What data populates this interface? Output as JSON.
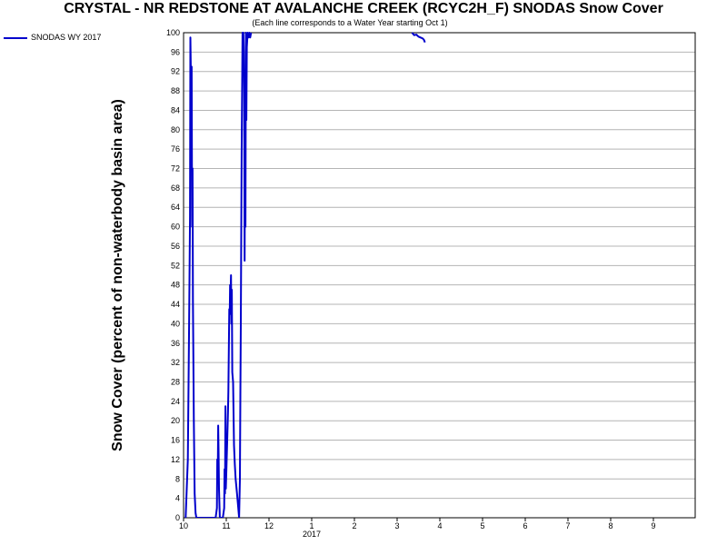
{
  "chart_data": {
    "type": "line",
    "title": "CRYSTAL - NR REDSTONE  AT AVALANCHE CREEK (RCYC2H_F) SNODAS Snow Cover",
    "subtitle": "(Each line corresponds to a Water Year starting Oct 1)",
    "ylabel": "Snow Cover (percent of non-waterbody basin area)",
    "xlabel": "",
    "ylim": [
      0,
      100
    ],
    "xlim": [
      0,
      12
    ],
    "y_ticks": [
      0,
      4,
      8,
      12,
      16,
      20,
      24,
      28,
      32,
      36,
      40,
      44,
      48,
      52,
      56,
      60,
      64,
      68,
      72,
      76,
      80,
      84,
      88,
      92,
      96,
      100
    ],
    "x_ticks": [
      {
        "x": 0,
        "label": "10"
      },
      {
        "x": 1,
        "label": "11"
      },
      {
        "x": 2,
        "label": "12"
      },
      {
        "x": 3,
        "label": "1"
      },
      {
        "x": 4,
        "label": "2"
      },
      {
        "x": 5,
        "label": "3"
      },
      {
        "x": 6,
        "label": "4"
      },
      {
        "x": 7,
        "label": "5"
      },
      {
        "x": 8,
        "label": "6"
      },
      {
        "x": 9,
        "label": "7"
      },
      {
        "x": 10,
        "label": "8"
      },
      {
        "x": 11,
        "label": "9"
      }
    ],
    "year_label": {
      "x": 3,
      "label": "2017"
    },
    "grid": true,
    "legend_position": "top-left",
    "series": [
      {
        "name": "SNODAS WY 2017",
        "color": "#0000cc",
        "segments": [
          [
            [
              0.05,
              0
            ],
            [
              0.1,
              12
            ],
            [
              0.13,
              40
            ],
            [
              0.15,
              62
            ],
            [
              0.16,
              99
            ],
            [
              0.18,
              85
            ],
            [
              0.19,
              93
            ],
            [
              0.2,
              60
            ],
            [
              0.21,
              72
            ],
            [
              0.22,
              45
            ],
            [
              0.24,
              20
            ],
            [
              0.26,
              5
            ],
            [
              0.28,
              1
            ],
            [
              0.3,
              0
            ],
            [
              0.4,
              0
            ],
            [
              0.6,
              0
            ],
            [
              0.75,
              0
            ],
            [
              0.78,
              2
            ],
            [
              0.79,
              12
            ],
            [
              0.8,
              8
            ],
            [
              0.81,
              19
            ],
            [
              0.82,
              14
            ],
            [
              0.83,
              6
            ],
            [
              0.85,
              0
            ],
            [
              0.92,
              0
            ],
            [
              0.95,
              2
            ],
            [
              0.96,
              10
            ],
            [
              0.97,
              5
            ],
            [
              0.98,
              23
            ],
            [
              0.99,
              6
            ],
            [
              1.0,
              9
            ],
            [
              1.02,
              15
            ],
            [
              1.04,
              22
            ],
            [
              1.05,
              26
            ],
            [
              1.07,
              43
            ],
            [
              1.08,
              42
            ],
            [
              1.09,
              48
            ],
            [
              1.1,
              46
            ],
            [
              1.11,
              50
            ],
            [
              1.12,
              40
            ],
            [
              1.13,
              47
            ],
            [
              1.14,
              30
            ],
            [
              1.16,
              28
            ],
            [
              1.18,
              15
            ],
            [
              1.2,
              11
            ],
            [
              1.22,
              8
            ],
            [
              1.25,
              5
            ],
            [
              1.28,
              2
            ],
            [
              1.3,
              0
            ],
            [
              1.32,
              8
            ],
            [
              1.33,
              25
            ],
            [
              1.34,
              40
            ],
            [
              1.36,
              75
            ],
            [
              1.38,
              100
            ],
            [
              1.4,
              100
            ],
            [
              1.41,
              96
            ],
            [
              1.42,
              88
            ],
            [
              1.43,
              53
            ],
            [
              1.44,
              87
            ],
            [
              1.45,
              60
            ],
            [
              1.46,
              100
            ],
            [
              1.47,
              82
            ],
            [
              1.48,
              97
            ],
            [
              1.5,
              100
            ],
            [
              1.52,
              99
            ],
            [
              1.54,
              100
            ],
            [
              1.56,
              99
            ],
            [
              1.58,
              100
            ]
          ],
          [
            [
              5.35,
              100
            ],
            [
              5.4,
              99.5
            ],
            [
              5.45,
              99.6
            ],
            [
              5.5,
              99.2
            ],
            [
              5.55,
              99.0
            ],
            [
              5.6,
              98.8
            ],
            [
              5.63,
              98.5
            ],
            [
              5.65,
              98.0
            ]
          ]
        ]
      }
    ]
  }
}
